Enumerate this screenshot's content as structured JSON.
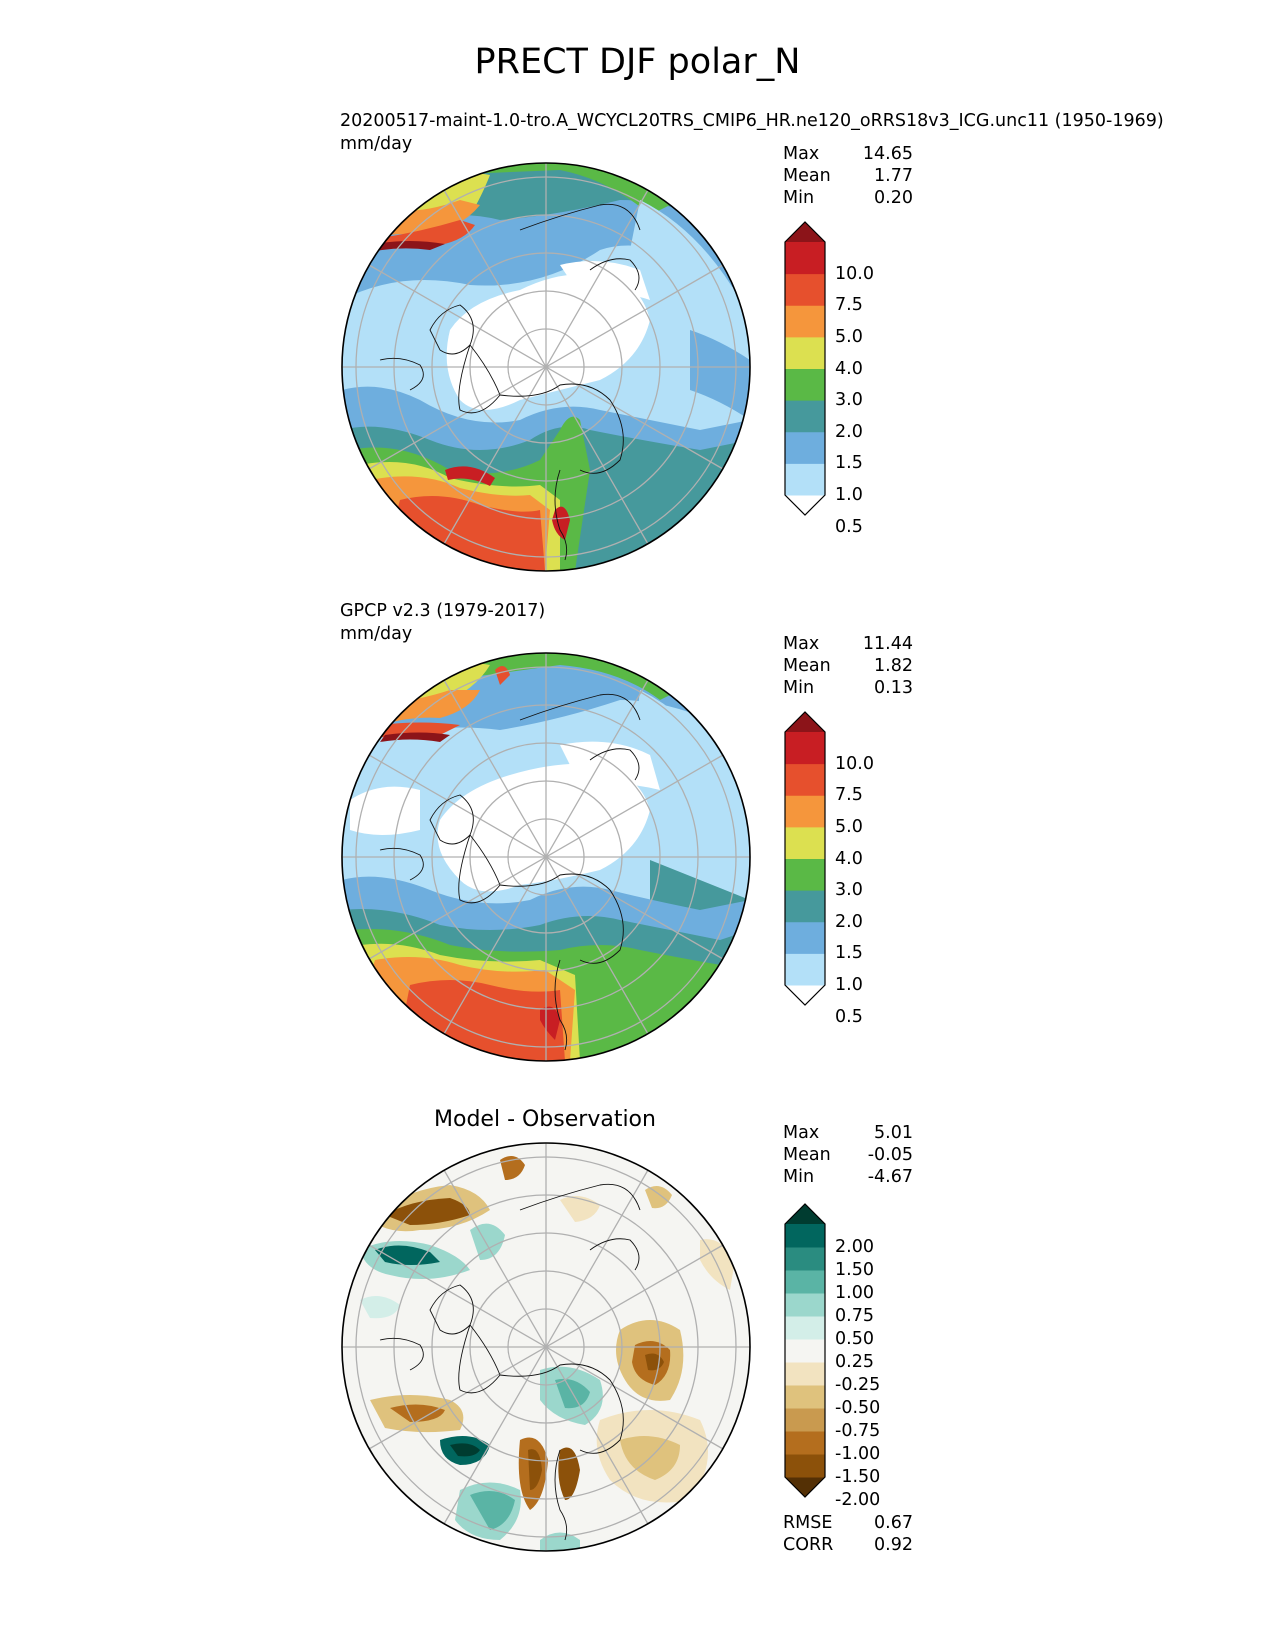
{
  "title": "PRECT DJF polar_N",
  "panels": [
    {
      "title": "20200517-maint-1.0-tro.A_WCYCL20TRS_CMIP6_HR.ne120_oRRS18v3_ICG.unc11 (1950-1969)",
      "units": "mm/day",
      "stats": [
        {
          "label": "Max",
          "value": "14.65"
        },
        {
          "label": "Mean",
          "value": "1.77"
        },
        {
          "label": "Min",
          "value": "0.20"
        }
      ],
      "colorbar": {
        "labels": [
          "10.0",
          "7.5",
          "5.0",
          "4.0",
          "3.0",
          "2.0",
          "1.5",
          "1.0",
          "0.5"
        ],
        "colors": [
          "#ffffff",
          "#b3e0f8",
          "#6eaede",
          "#46999c",
          "#5ab946",
          "#dce050",
          "#f5963c",
          "#e6502d",
          "#c81e23",
          "#8c1419"
        ]
      }
    },
    {
      "title": "GPCP v2.3 (1979-2017)",
      "units": "mm/day",
      "stats": [
        {
          "label": "Max",
          "value": "11.44"
        },
        {
          "label": "Mean",
          "value": "1.82"
        },
        {
          "label": "Min",
          "value": "0.13"
        }
      ],
      "colorbar": {
        "labels": [
          "10.0",
          "7.5",
          "5.0",
          "4.0",
          "3.0",
          "2.0",
          "1.5",
          "1.0",
          "0.5"
        ],
        "colors": [
          "#ffffff",
          "#b3e0f8",
          "#6eaede",
          "#46999c",
          "#5ab946",
          "#dce050",
          "#f5963c",
          "#e6502d",
          "#c81e23",
          "#8c1419"
        ]
      }
    },
    {
      "title": "Model - Observation",
      "units": "",
      "stats": [
        {
          "label": "Max",
          "value": "5.01"
        },
        {
          "label": "Mean",
          "value": "-0.05"
        },
        {
          "label": "Min",
          "value": "-4.67"
        }
      ],
      "metrics": [
        {
          "label": "RMSE",
          "value": "0.67"
        },
        {
          "label": "CORR",
          "value": "0.92"
        }
      ],
      "colorbar": {
        "labels": [
          "2.00",
          "1.50",
          "1.00",
          "0.75",
          "0.50",
          "0.25",
          "-0.25",
          "-0.50",
          "-0.75",
          "-1.00",
          "-1.50",
          "-2.00"
        ],
        "colors": [
          "#543005",
          "#8c510a",
          "#b46e1e",
          "#c99a4f",
          "#dfc27d",
          "#f2e3c0",
          "#f5f5f2",
          "#d3eee8",
          "#9bd7cc",
          "#5ab4a5",
          "#2a8c80",
          "#01665e",
          "#003c30"
        ]
      }
    }
  ]
}
